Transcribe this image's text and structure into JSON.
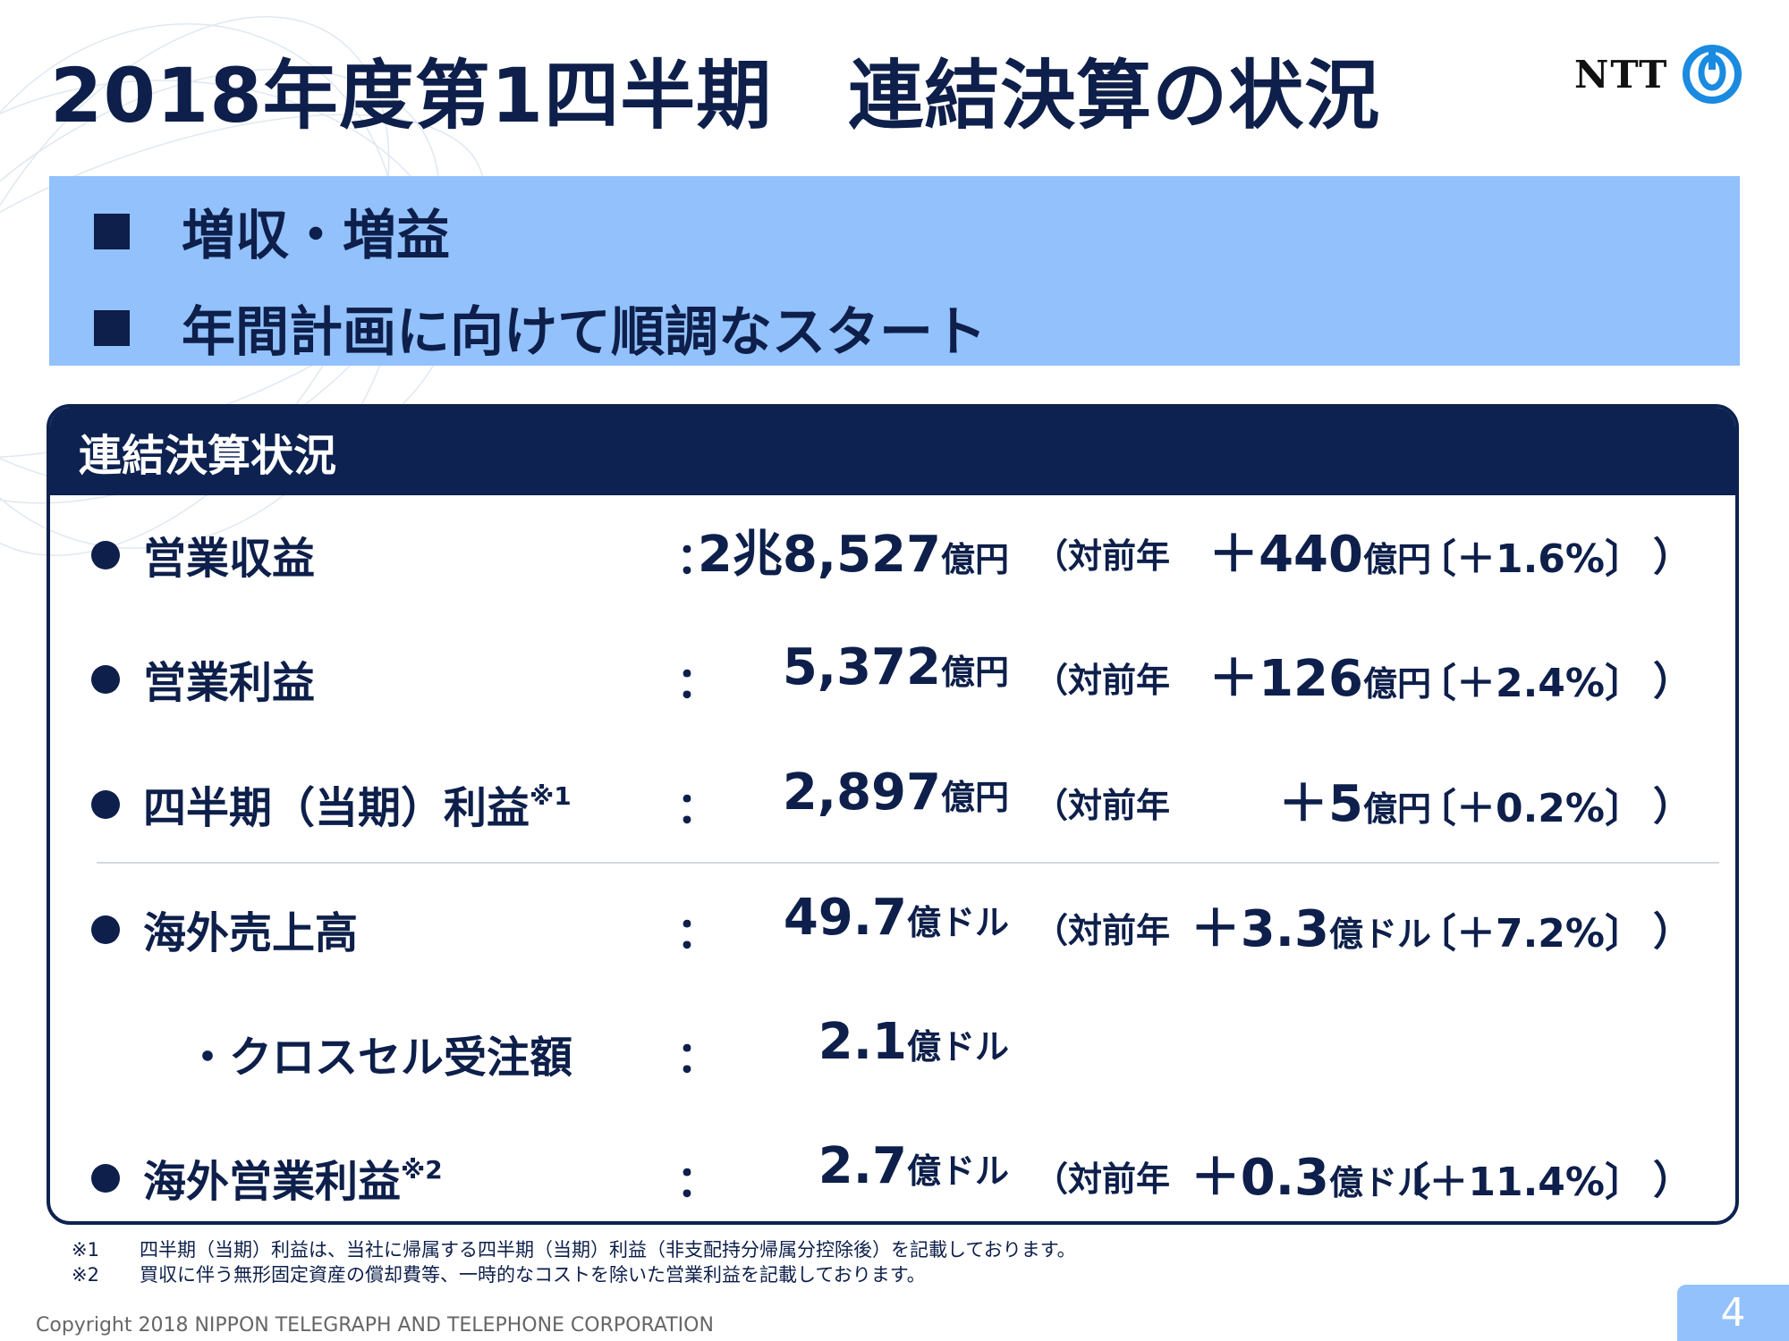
{
  "title": "2018年度第1四半期　連結決算の状況",
  "logo": {
    "text": "NTT",
    "icon": "ntt-logo-icon"
  },
  "highlights": [
    "増収・増益",
    "年間計画に向けて順調なスタート"
  ],
  "panel": {
    "header": "連結決算状況",
    "rows": [
      {
        "label": "営業収益",
        "colon": "：",
        "value_num": "2兆8,527",
        "value_unit": "億円",
        "yoy": "（対前年",
        "delta_num": "＋440",
        "delta_unit": "億円",
        "pct": "〔＋1.6%〕",
        "close": "）"
      },
      {
        "label": "営業利益",
        "colon": "：",
        "value_num": "5,372",
        "value_unit": "億円",
        "yoy": "（対前年",
        "delta_num": "＋126",
        "delta_unit": "億円",
        "pct": "〔＋2.4%〕",
        "close": "）"
      },
      {
        "label": "四半期（当期）利益",
        "note": "※1",
        "colon": "：",
        "value_num": "2,897",
        "value_unit": "億円",
        "yoy": "（対前年",
        "delta_num": "＋5",
        "delta_unit": "億円",
        "pct": "〔＋0.2%〕",
        "close": "）"
      },
      {
        "label": "海外売上高",
        "colon": "：",
        "value_num": "49.7",
        "value_unit": "億ドル",
        "yoy": "（対前年",
        "delta_num": "＋3.3",
        "delta_unit": "億ドル",
        "pct": "〔＋7.2%〕",
        "close": "）"
      },
      {
        "label": "・クロスセル受注額",
        "colon": "：",
        "value_num": "2.1",
        "value_unit": "億ドル"
      },
      {
        "label": "海外営業利益",
        "note": "※2",
        "colon": "：",
        "value_num": "2.7",
        "value_unit": "億ドル",
        "yoy": "（対前年",
        "delta_num": "＋0.3",
        "delta_unit": "億ドル",
        "pct": "〔＋11.4%〕",
        "close": "）"
      }
    ]
  },
  "footnotes": [
    {
      "mark": "※1",
      "text": "四半期（当期）利益は、当社に帰属する四半期（当期）利益（非支配持分帰属分控除後）を記載しております。"
    },
    {
      "mark": "※2",
      "text": "買収に伴う無形固定資産の償却費等、一時的なコストを除いた営業利益を記載しております。"
    }
  ],
  "copyright": "Copyright 2018 NIPPON TELEGRAPH AND TELEPHONE CORPORATION",
  "page_number": "4",
  "colors": {
    "navy": "#0d2250",
    "highlight": "#92c1fb"
  }
}
